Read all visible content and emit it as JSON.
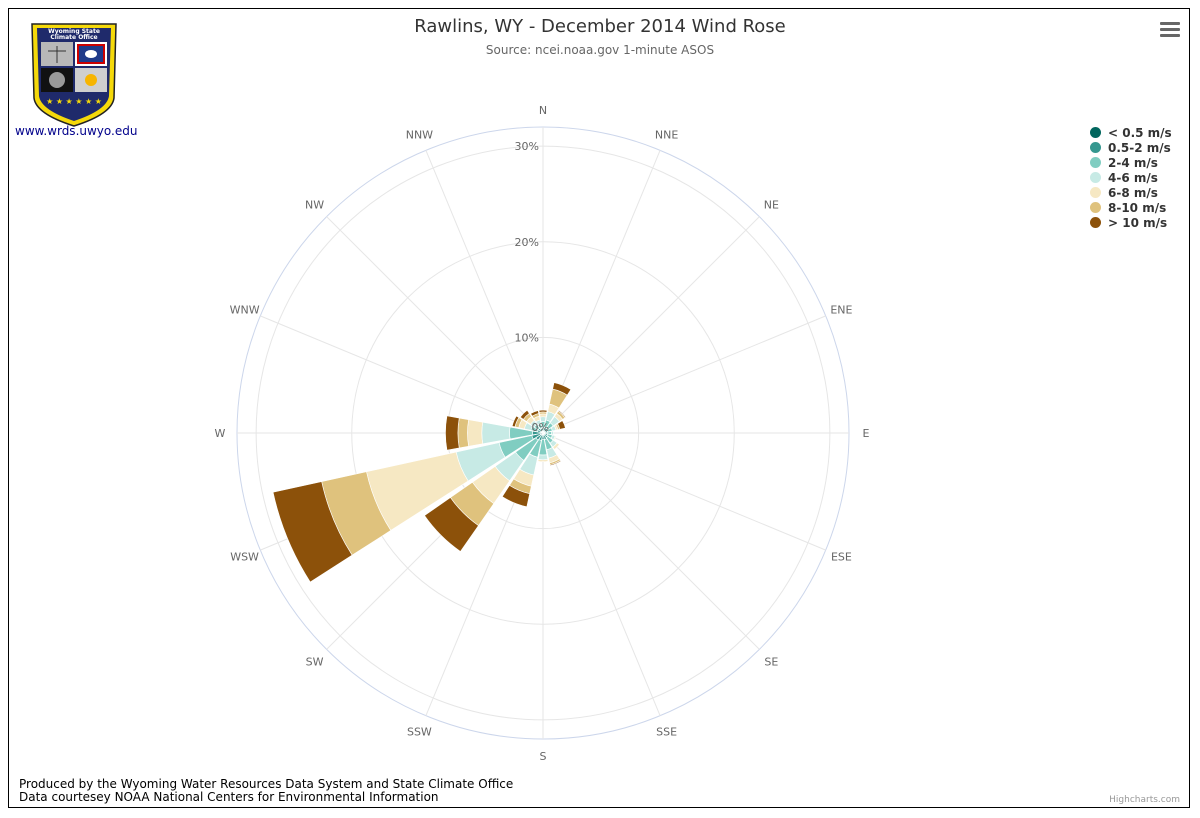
{
  "header": {
    "title": "Rawlins, WY - December 2014 Wind Rose",
    "subtitle": "Source: ncei.noaa.gov 1-minute ASOS"
  },
  "logo": {
    "text_line1": "Wyoming State",
    "text_line2": "Climate Office",
    "link_text": "www.wrds.uwyo.edu"
  },
  "footer": {
    "line1": "Produced by the Wyoming Water Resources Data System and State Climate Office",
    "line2": "Data courtesey NOAA National Centers for Environmental Information",
    "highcharts": "Highcharts.com"
  },
  "icons": {
    "menu": "hamburger-menu-icon"
  },
  "chart_data": {
    "type": "bar",
    "subtype": "wind-rose-stacked-polar",
    "title": "Rawlins, WY - December 2014 Wind Rose",
    "subtitle": "Source: ncei.noaa.gov 1-minute ASOS",
    "categories": [
      "N",
      "NNE",
      "NE",
      "ENE",
      "E",
      "ESE",
      "SE",
      "SSE",
      "S",
      "SSW",
      "SW",
      "WSW",
      "W",
      "WNW",
      "NW",
      "NNW"
    ],
    "y_axis": {
      "min": 0,
      "max": 32,
      "ticks": [
        0,
        10,
        20,
        30
      ],
      "tick_labels": [
        "0%",
        "10%",
        "20%",
        "30%"
      ]
    },
    "legend_placement": "top-right",
    "series": [
      {
        "name": "< 0.5 m/s",
        "color": "#01665e",
        "values": [
          0.2,
          0.2,
          0.2,
          0.2,
          0.2,
          0.2,
          0.2,
          0.2,
          0.2,
          0.2,
          0.2,
          0.3,
          0.3,
          0.2,
          0.2,
          0.2
        ]
      },
      {
        "name": "0.5-2 m/s",
        "color": "#35978f",
        "values": [
          0.4,
          0.4,
          0.4,
          0.3,
          0.3,
          0.3,
          0.4,
          0.5,
          0.5,
          0.6,
          0.7,
          0.9,
          0.8,
          0.4,
          0.4,
          0.3
        ]
      },
      {
        "name": "2-4 m/s",
        "color": "#80cdc1",
        "values": [
          0.6,
          0.8,
          0.7,
          0.5,
          0.4,
          0.5,
          0.7,
          1.1,
          1.6,
          1.8,
          2.6,
          3.5,
          2.4,
          0.7,
          0.5,
          0.5
        ]
      },
      {
        "name": "4-6 m/s",
        "color": "#c7eae5",
        "values": [
          0.5,
          0.9,
          0.8,
          0.4,
          0.2,
          0.3,
          0.5,
          0.9,
          0.5,
          1.9,
          2.6,
          4.6,
          2.9,
          0.7,
          0.5,
          0.4
        ]
      },
      {
        "name": "6-8 m/s",
        "color": "#f6e8c3",
        "values": [
          0.3,
          0.8,
          0.4,
          0.2,
          0,
          0.1,
          0.3,
          0.5,
          0.2,
          1.2,
          2.9,
          9.6,
          1.5,
          0.6,
          0.5,
          0.4
        ]
      },
      {
        "name": "8-10 m/s",
        "color": "#dfc27d",
        "values": [
          0.2,
          1.6,
          0.3,
          0.2,
          0,
          0,
          0,
          0.2,
          0,
          0.8,
          2.8,
          4.8,
          1.0,
          0.4,
          0.4,
          0.3
        ]
      },
      {
        "name": "> 10 m/s",
        "color": "#8c510a",
        "values": [
          0.2,
          0.7,
          0.1,
          0.6,
          0,
          0,
          0,
          0.1,
          0,
          1.4,
          3.3,
          5.2,
          1.3,
          0.3,
          0.4,
          0.3
        ]
      }
    ]
  }
}
